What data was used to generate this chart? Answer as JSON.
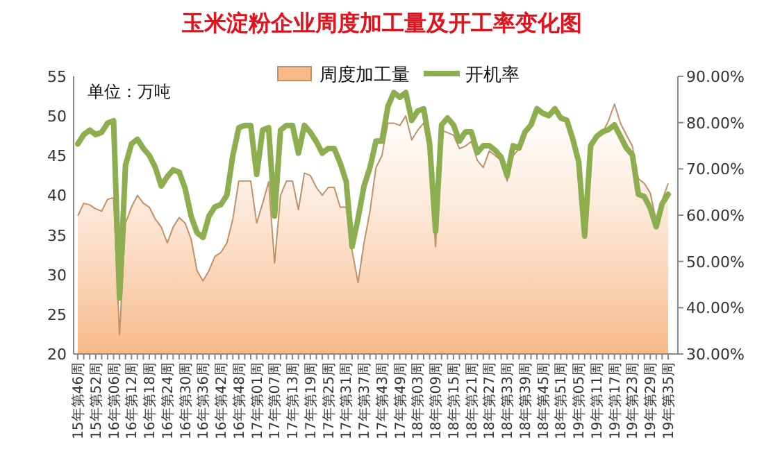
{
  "chart_data": {
    "type": "area",
    "title": "玉米淀粉企业周度加工量及开工率变化图",
    "annotations": [
      "单位：万吨"
    ],
    "categories": [
      "15年第46周",
      null,
      null,
      "15年第52周",
      null,
      null,
      "16年第06周",
      null,
      null,
      "16年第12周",
      null,
      null,
      "16年第18周",
      null,
      null,
      "16年第24周",
      null,
      null,
      "16年第30周",
      null,
      null,
      "16年第36周",
      null,
      null,
      "16年第42周",
      null,
      null,
      "16年第48周",
      null,
      null,
      "17年第01周",
      null,
      null,
      "17年第07周",
      null,
      null,
      "17年第13周",
      null,
      null,
      "17年第19周",
      null,
      null,
      "17年第25周",
      null,
      null,
      "17年第31周",
      null,
      null,
      "17年第37周",
      null,
      null,
      "17年第43周",
      null,
      null,
      "17年第49周",
      null,
      null,
      "18年第03周",
      null,
      null,
      "18年第09周",
      null,
      null,
      "18年第15周",
      null,
      null,
      "18年第21周",
      null,
      null,
      "18年第27周",
      null,
      null,
      "18年第33周",
      null,
      null,
      "18年第39周",
      null,
      null,
      "18年第45周",
      null,
      null,
      "18年第51周",
      null,
      null,
      "19年第05周",
      null,
      null,
      "19年第11周",
      null,
      null,
      "19年第17周",
      null,
      null,
      "19年第23周",
      null,
      null,
      "19年第29周",
      null,
      null,
      "19年第35周"
    ],
    "series": [
      {
        "name": "周度加工量",
        "color": "#f7b987",
        "values": [
          37.4,
          39.0,
          38.8,
          38.3,
          38.0,
          39.5,
          39.7,
          22.4,
          36.5,
          38.5,
          40.0,
          39.0,
          38.5,
          37.0,
          36.0,
          34.0,
          36.0,
          37.2,
          36.5,
          34.5,
          30.5,
          29.2,
          30.5,
          32.3,
          32.8,
          34.0,
          37.0,
          41.8,
          41.8,
          41.8,
          36.5,
          39.0,
          41.7,
          31.5,
          40.0,
          41.8,
          41.8,
          38.2,
          42.8,
          42.5,
          41.0,
          40.0,
          41.0,
          41.0,
          38.5,
          38.5,
          33.0,
          29.0,
          34.0,
          38.0,
          43.5,
          45.0,
          49.1,
          49.1,
          48.8,
          50.0,
          47.0,
          48.2,
          49.1,
          45.0,
          33.5,
          48.2,
          47.9,
          47.6,
          45.9,
          46.2,
          46.8,
          44.4,
          43.5,
          45.6,
          45.0,
          44.4,
          41.8,
          45.0,
          45.9,
          47.9,
          48.8,
          51.2,
          50.6,
          50.0,
          51.2,
          50.0,
          49.7,
          47.1,
          44.1,
          34.7,
          46.5,
          47.4,
          47.9,
          49.4,
          51.5,
          49.1,
          47.6,
          46.2,
          42.1,
          41.5,
          40.3,
          36.8,
          39.4,
          41.5
        ]
      },
      {
        "name": "开机率",
        "type": "line",
        "axis": "y2",
        "color": "#8cae4f",
        "values": [
          75.4,
          77.4,
          78.4,
          77.4,
          77.9,
          79.9,
          80.4,
          42.1,
          70.8,
          75.4,
          76.4,
          74.4,
          72.9,
          70.3,
          66.3,
          68.3,
          69.8,
          69.3,
          65.8,
          59.8,
          56.2,
          55.2,
          59.8,
          61.8,
          62.3,
          64.3,
          72.9,
          78.9,
          79.4,
          79.4,
          68.8,
          78.4,
          78.9,
          59.8,
          78.4,
          79.4,
          79.4,
          73.4,
          79.4,
          77.9,
          75.9,
          73.4,
          74.4,
          74.4,
          71.3,
          67.3,
          53.2,
          59.3,
          66.3,
          70.3,
          76.0,
          76.0,
          83.5,
          86.5,
          85.5,
          86.5,
          80.5,
          82.5,
          83.0,
          75.5,
          56.5,
          79.5,
          81.0,
          79.5,
          76.0,
          78.0,
          78.0,
          73.5,
          75.0,
          75.0,
          74.0,
          72.5,
          68.5,
          75.0,
          74.5,
          78.0,
          79.5,
          83.0,
          82.0,
          81.5,
          83.0,
          81.0,
          80.5,
          76.5,
          71.5,
          55.5,
          75.0,
          77.0,
          78.0,
          78.5,
          79.5,
          77.0,
          74.5,
          73.0,
          64.5,
          64.0,
          61.5,
          57.5,
          62.5,
          64.5
        ]
      }
    ],
    "ylim": [
      20,
      55
    ],
    "yticks": [
      20,
      25,
      30,
      35,
      40,
      45,
      50,
      55
    ],
    "y2lim": [
      30,
      90
    ],
    "y2ticks": [
      {
        "value": 30,
        "label": "30.00%"
      },
      {
        "value": 40,
        "label": "40.00%"
      },
      {
        "value": 50,
        "label": "50.00%"
      },
      {
        "value": 60,
        "label": "60.00%"
      },
      {
        "value": 70,
        "label": "70.00%"
      },
      {
        "value": 80,
        "label": "80.00%"
      },
      {
        "value": 90,
        "label": "90.00%"
      }
    ],
    "grid": false,
    "legend": "top right"
  }
}
